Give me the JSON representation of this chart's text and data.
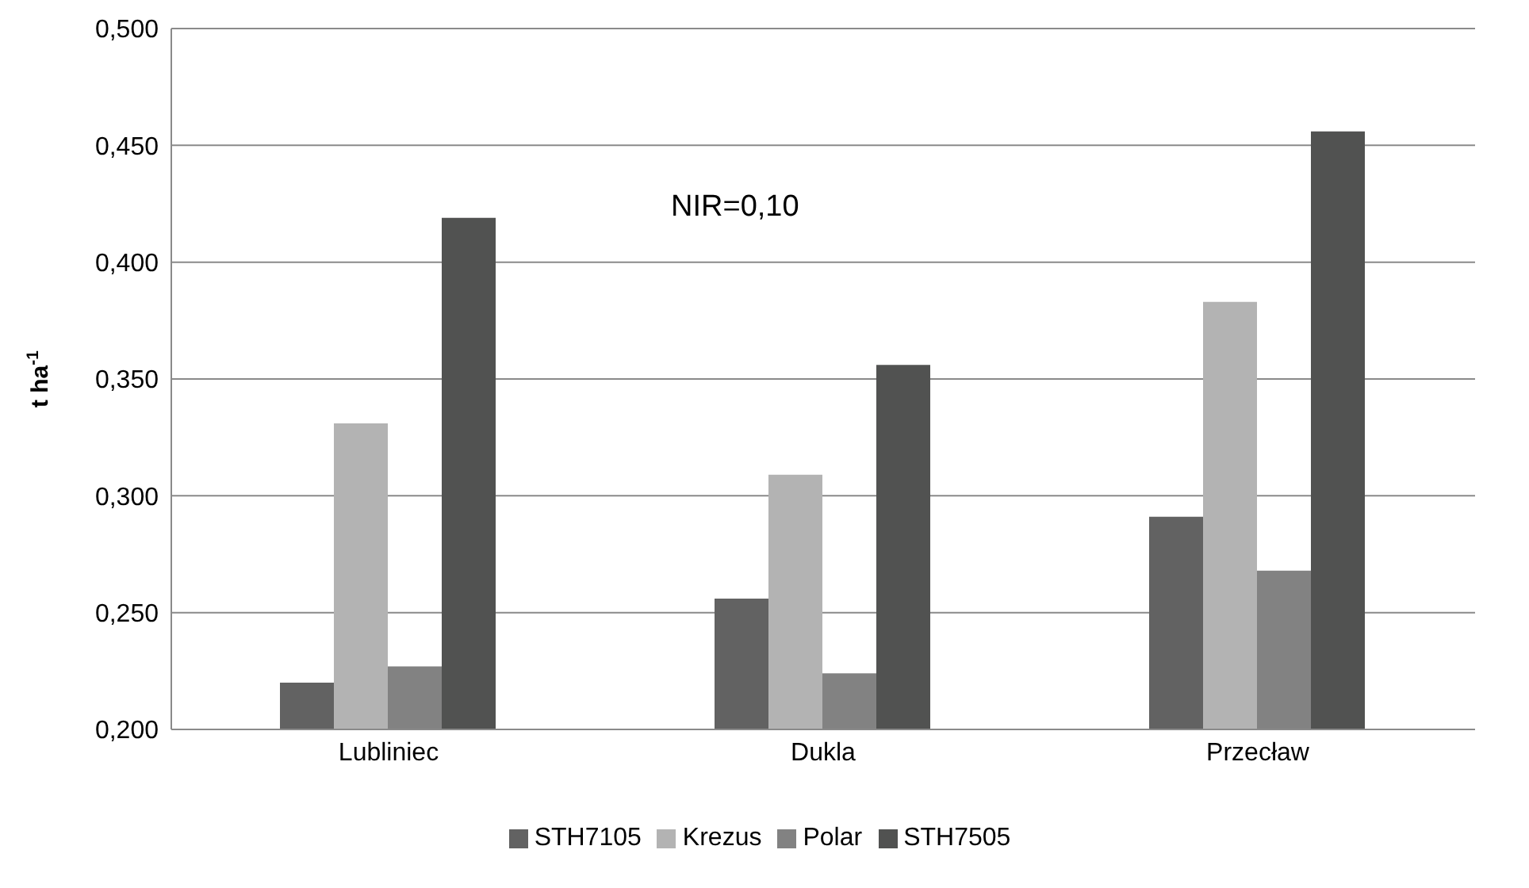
{
  "chart_data": {
    "type": "bar",
    "ylabel": "t ha$^{-1}$",
    "categories": [
      "Lubliniec",
      "Dukla",
      "Przecław"
    ],
    "series": [
      {
        "name": "STH7105",
        "color": "#626262",
        "values": [
          0.22,
          0.256,
          0.291
        ]
      },
      {
        "name": "Krezus",
        "color": "#b3b3b3",
        "values": [
          0.331,
          0.309,
          0.383
        ]
      },
      {
        "name": "Polar",
        "color": "#828282",
        "values": [
          0.227,
          0.224,
          0.268
        ]
      },
      {
        "name": "STH7505",
        "color": "#515251",
        "values": [
          0.419,
          0.356,
          0.456
        ]
      }
    ],
    "ylim": [
      0.2,
      0.5
    ],
    "yticks": [
      {
        "value": 0.2,
        "label": "0,200"
      },
      {
        "value": 0.25,
        "label": "0,250"
      },
      {
        "value": 0.3,
        "label": "0,300"
      },
      {
        "value": 0.35,
        "label": "0,350"
      },
      {
        "value": 0.4,
        "label": "0,400"
      },
      {
        "value": 0.45,
        "label": "0,450"
      },
      {
        "value": 0.5,
        "label": "0,500"
      }
    ],
    "grid": "y",
    "legend": "bottom",
    "annotations": [
      "NIR=0,10"
    ]
  }
}
